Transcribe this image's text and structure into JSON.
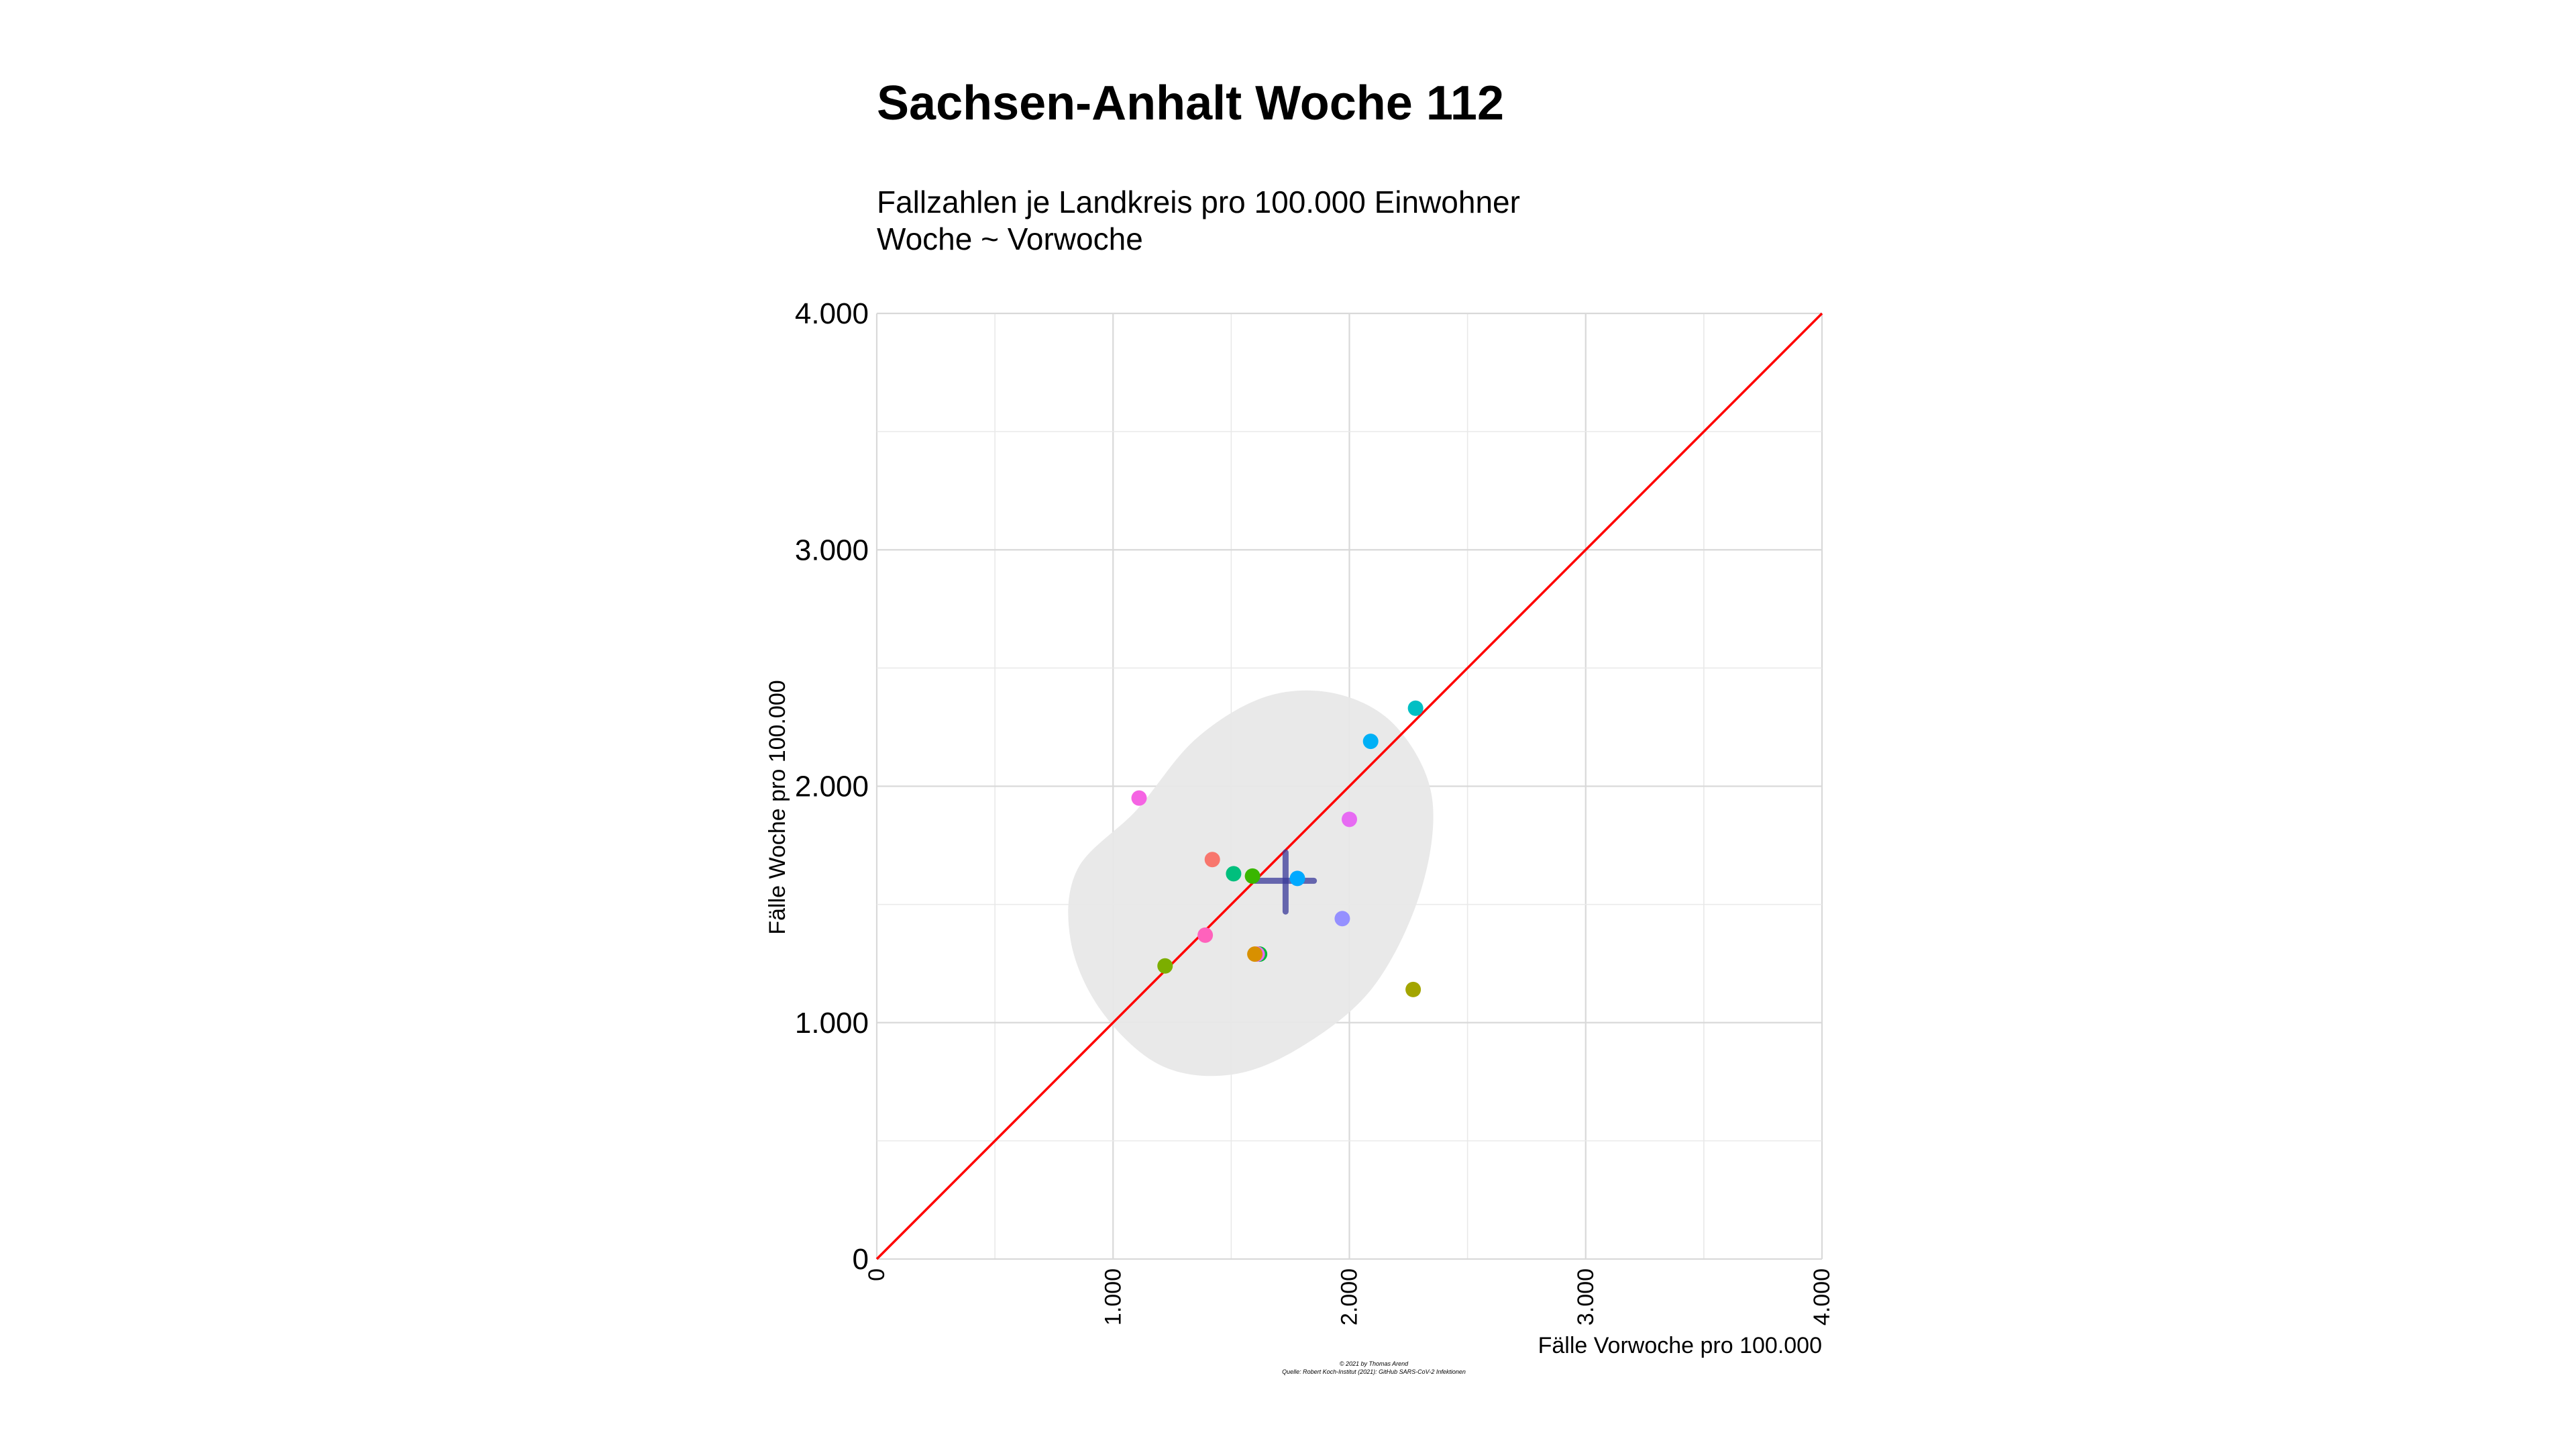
{
  "chart_data": {
    "type": "scatter",
    "title": "Sachsen-Anhalt Woche 112",
    "subtitle_line1": "Fallzahlen je Landkreis pro 100.000 Einwohner",
    "subtitle_line2": "Woche ~ Vorwoche",
    "xlabel": "Fälle Vorwoche pro 100.000",
    "ylabel": "Fälle Woche pro 100.000",
    "xlim": [
      0,
      4000
    ],
    "ylim": [
      0,
      4000
    ],
    "x_ticks": [
      {
        "value": 0,
        "label": "0"
      },
      {
        "value": 1000,
        "label": "1.000"
      },
      {
        "value": 2000,
        "label": "2.000"
      },
      {
        "value": 3000,
        "label": "3.000"
      },
      {
        "value": 4000,
        "label": "4.000"
      }
    ],
    "y_ticks": [
      {
        "value": 0,
        "label": "0"
      },
      {
        "value": 1000,
        "label": "1.000"
      },
      {
        "value": 2000,
        "label": "2.000"
      },
      {
        "value": 3000,
        "label": "3.000"
      },
      {
        "value": 4000,
        "label": "4.000"
      }
    ],
    "grid": true,
    "legend": "none",
    "reference_line": {
      "type": "identity",
      "color": "#ff0000"
    },
    "confidence_ellipse": {
      "color": "#e8e8e8",
      "points": [
        [
          1100,
          1900
        ],
        [
          1350,
          2200
        ],
        [
          1650,
          2380
        ],
        [
          1950,
          2390
        ],
        [
          2200,
          2250
        ],
        [
          2350,
          1950
        ],
        [
          2300,
          1550
        ],
        [
          2100,
          1150
        ],
        [
          1800,
          900
        ],
        [
          1500,
          780
        ],
        [
          1200,
          820
        ],
        [
          950,
          1050
        ],
        [
          820,
          1350
        ],
        [
          850,
          1650
        ]
      ]
    },
    "mean_cross": {
      "x": 1730,
      "y": 1600,
      "x_range": [
        1600,
        1850
      ],
      "y_range": [
        1470,
        1720
      ],
      "color": "#3a3a9a"
    },
    "points": [
      {
        "x": 1110,
        "y": 1950,
        "color": "#f564e3"
      },
      {
        "x": 1420,
        "y": 1690,
        "color": "#f8766d"
      },
      {
        "x": 1510,
        "y": 1630,
        "color": "#00bf7d"
      },
      {
        "x": 1590,
        "y": 1620,
        "color": "#39b600"
      },
      {
        "x": 1780,
        "y": 1610,
        "color": "#00a9ff"
      },
      {
        "x": 1390,
        "y": 1370,
        "color": "#ff62bc"
      },
      {
        "x": 1220,
        "y": 1240,
        "color": "#7cae00"
      },
      {
        "x": 1620,
        "y": 1290,
        "color": "#00ba38"
      },
      {
        "x": 1610,
        "y": 1290,
        "color": "#e76bf3"
      },
      {
        "x": 1600,
        "y": 1290,
        "color": "#d89000"
      },
      {
        "x": 1970,
        "y": 1440,
        "color": "#9590ff"
      },
      {
        "x": 2000,
        "y": 1860,
        "color": "#e76bf3"
      },
      {
        "x": 2090,
        "y": 2190,
        "color": "#00b0f6"
      },
      {
        "x": 2280,
        "y": 2330,
        "color": "#00bfc4"
      },
      {
        "x": 2270,
        "y": 1140,
        "color": "#a3a500"
      }
    ]
  },
  "caption": {
    "line1": "© 2021 by Thomas Arend",
    "line2": "Quelle: Robert Koch-Institut (2021): GitHub SARS-CoV-2 Infektionen"
  }
}
